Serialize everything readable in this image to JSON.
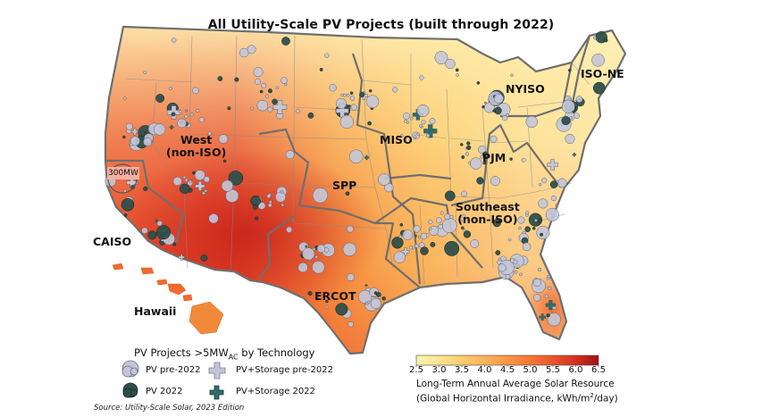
{
  "title": "All Utility-Scale PV Projects (built through 2022)",
  "regions": {
    "west": "West\n(non-ISO)",
    "caiso": "CAISO",
    "hawaii": "Hawaii",
    "spp": "SPP",
    "miso": "MISO",
    "pjm": "PJM",
    "nyiso": "NYISO",
    "isone": "ISO-NE",
    "ercot": "ERCOT",
    "southeast": "Southeast\n(non-ISO)",
    "callout": "300MW"
  },
  "legend": {
    "title_main": "PV Projects >5MW",
    "title_sub": "AC",
    "title_tail": " by Technology",
    "items": [
      {
        "label": "PV pre-2022",
        "color": "#c3c6d8",
        "marker": "circle-icon"
      },
      {
        "label": "PV+Storage pre-2022",
        "color": "#c3c6d8",
        "marker": "plus-icon"
      },
      {
        "label": "PV 2022",
        "color": "#2f4f4a",
        "marker": "circle-icon"
      },
      {
        "label": "PV+Storage 2022",
        "color": "#2f6e6a",
        "marker": "plus-icon"
      }
    ]
  },
  "colorbar": {
    "ticks": [
      "2.5",
      "3.0",
      "3.5",
      "4.0",
      "4.5",
      "5.0",
      "5.5",
      "6.0",
      "6.5"
    ],
    "min": 2.5,
    "max": 6.5,
    "title_line1": "Long-Term Annual Average Solar Resource",
    "title_line2_pre": "(Global Horizontal Irradiance, kWh/m",
    "title_line2_sup": "2",
    "title_line2_post": "/day)",
    "colors": [
      "#fff5b0",
      "#fde08a",
      "#fdc266",
      "#fca24c",
      "#f77d39",
      "#ea552b",
      "#d32f21",
      "#a50f15"
    ]
  },
  "source": "Source: Utility-Scale Solar, 2023 Edition"
}
